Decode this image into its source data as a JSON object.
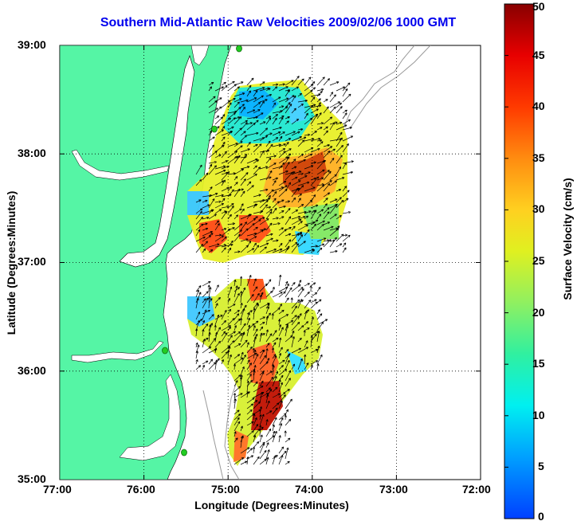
{
  "title": "Southern Mid-Atlantic Raw Velocities 2009/02/06 1000 GMT",
  "xlabel": "Longitude (Degrees:Minutes)",
  "ylabel": "Latitude (Degrees:Minutes)",
  "colorbar": {
    "label": "Surface Velocity (cm/s)",
    "min": 0,
    "max": 50,
    "ticks": [
      "0",
      "5",
      "10",
      "15",
      "20",
      "25",
      "30",
      "35",
      "40",
      "45",
      "50"
    ]
  },
  "axes": {
    "x_ticks": [
      "77:00",
      "76:00",
      "75:00",
      "74:00",
      "73:00",
      "72:00"
    ],
    "y_ticks": [
      "39:00",
      "38:00",
      "37:00",
      "36:00",
      "35:00"
    ],
    "xlim": [
      -77,
      -72
    ],
    "ylim": [
      35,
      39
    ],
    "grid": true
  },
  "colors": {
    "land": "#55f5a5",
    "title": "#0000ee",
    "vectors": "#000000",
    "bathymetry": "#999999",
    "stations": "#22cc22"
  }
}
